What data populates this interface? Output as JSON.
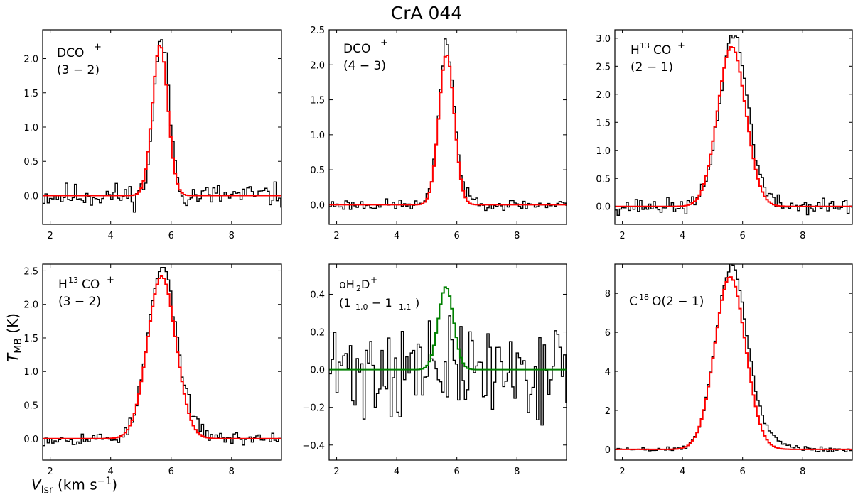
{
  "figure": {
    "title": "CrA 044",
    "ylabel_main": "T",
    "ylabel_sub": "MB",
    "ylabel_unit": " (K)",
    "xlabel_main": "V",
    "xlabel_sub": "lsr",
    "xlabel_unit": " (km s",
    "xlabel_exp": "−1",
    "xlabel_close": ")"
  },
  "chart_data": [
    {
      "type": "line",
      "label": [
        "DCO",
        "+",
        "(3 − 2)"
      ],
      "xlim": [
        1.75,
        9.65
      ],
      "ylim": [
        -0.42,
        2.42
      ],
      "xticks": [
        2,
        4,
        6,
        8
      ],
      "xtick_labels": [
        "2",
        "4",
        "6",
        "8"
      ],
      "yticks": [
        0.0,
        0.5,
        1.0,
        1.5,
        2.0
      ],
      "ytick_labels": [
        "0.0",
        "0.5",
        "1.0",
        "1.5",
        "2.0"
      ],
      "fit_color": "#ff0000",
      "fit": {
        "amp": 2.2,
        "center": 5.6,
        "fwhm": 0.6
      },
      "obs_color": "#000000",
      "obs": {
        "noise": 0.09,
        "seed": 11,
        "ratio": 1.03,
        "shift": 0.05,
        "wing_amp": 0,
        "wing_width": 0,
        "spike_x": 5.6,
        "spike_y": 2.25
      }
    },
    {
      "type": "line",
      "label": [
        "DCO",
        "+",
        "(4 − 3)"
      ],
      "xlim": [
        1.75,
        9.65
      ],
      "ylim": [
        -0.28,
        2.5
      ],
      "xticks": [
        2,
        4,
        6,
        8
      ],
      "xtick_labels": [
        "2",
        "4",
        "6",
        "8"
      ],
      "yticks": [
        0.0,
        0.5,
        1.0,
        1.5,
        2.0,
        2.5
      ],
      "ytick_labels": [
        "0.0",
        "0.5",
        "1.0",
        "1.5",
        "2.0",
        "2.5"
      ],
      "fit_color": "#ff0000",
      "fit": {
        "amp": 2.15,
        "center": 5.62,
        "fwhm": 0.6
      },
      "obs_color": "#000000",
      "obs": {
        "noise": 0.04,
        "seed": 23,
        "ratio": 1.05,
        "shift": 0.0,
        "wing_amp": 0.08,
        "wing_width": 0.9,
        "spike_x": 5.6,
        "spike_y": 2.37
      }
    },
    {
      "type": "line",
      "label": [
        "H",
        "13",
        "CO",
        "+",
        "(2 − 1)"
      ],
      "xlim": [
        1.75,
        9.65
      ],
      "ylim": [
        -0.32,
        3.15
      ],
      "xticks": [
        2,
        4,
        6,
        8
      ],
      "xtick_labels": [
        "2",
        "4",
        "6",
        "8"
      ],
      "yticks": [
        0.0,
        0.5,
        1.0,
        1.5,
        2.0,
        2.5,
        3.0
      ],
      "ytick_labels": [
        "0.0",
        "0.5",
        "1.0",
        "1.5",
        "2.0",
        "2.5",
        "3.0"
      ],
      "fit_color": "#ff0000",
      "fit": {
        "amp": 2.85,
        "center": 5.6,
        "fwhm": 1.1
      },
      "obs_color": "#000000",
      "obs": {
        "noise": 0.07,
        "seed": 37,
        "ratio": 1.05,
        "shift": 0.05,
        "wing_amp": 0.12,
        "wing_width": 1.3,
        "spike_x": 5.6,
        "spike_y": 3.05
      }
    },
    {
      "type": "line",
      "label": [
        "H",
        "13",
        "CO",
        "+",
        "(3 − 2)"
      ],
      "xlim": [
        1.75,
        9.65
      ],
      "ylim": [
        -0.32,
        2.6
      ],
      "xticks": [
        2,
        4,
        6,
        8
      ],
      "xtick_labels": [
        "2",
        "4",
        "6",
        "8"
      ],
      "yticks": [
        0.0,
        0.5,
        1.0,
        1.5,
        2.0,
        2.5
      ],
      "ytick_labels": [
        "0.0",
        "0.5",
        "1.0",
        "1.5",
        "2.0",
        "2.5"
      ],
      "fit_color": "#ff0000",
      "fit": {
        "amp": 2.42,
        "center": 5.65,
        "fwhm": 1.1
      },
      "obs_color": "#000000",
      "obs": {
        "noise": 0.05,
        "seed": 53,
        "ratio": 1.03,
        "shift": 0.0,
        "wing_amp": 0.15,
        "wing_width": 1.4,
        "spike_x": 5.65,
        "spike_y": 2.55
      }
    },
    {
      "type": "line",
      "label": [
        "oH",
        "2",
        "D",
        "+",
        "(1",
        "1,0",
        " − 1",
        "1,1",
        ")"
      ],
      "xlim": [
        1.75,
        9.65
      ],
      "ylim": [
        -0.48,
        0.56
      ],
      "xticks": [
        2,
        4,
        6,
        8
      ],
      "xtick_labels": [
        "2",
        "4",
        "6",
        "8"
      ],
      "yticks": [
        -0.4,
        -0.2,
        0.0,
        0.2,
        0.4
      ],
      "ytick_labels": [
        "−0.4",
        "−0.2",
        "0.0",
        "0.2",
        "0.4"
      ],
      "fit_color": "#008000",
      "fit": {
        "amp": 0.44,
        "center": 5.6,
        "fwhm": 0.6
      },
      "obs_color": "#000000",
      "obs": {
        "noise": 0.13,
        "seed": 71,
        "ratio": 0.0,
        "shift": 0.0,
        "wing_amp": 0,
        "wing_width": 0,
        "spike_x": 0,
        "spike_y": 0
      }
    },
    {
      "type": "line",
      "label": [
        "C",
        "18",
        "O(2 − 1)"
      ],
      "xlim": [
        1.75,
        9.65
      ],
      "ylim": [
        -0.55,
        9.5
      ],
      "xticks": [
        2,
        4,
        6,
        8
      ],
      "xtick_labels": [
        "2",
        "4",
        "6",
        "8"
      ],
      "yticks": [
        0,
        2,
        4,
        6,
        8
      ],
      "ytick_labels": [
        "0",
        "2",
        "4",
        "6",
        "8"
      ],
      "fit_color": "#ff0000",
      "fit": {
        "amp": 8.85,
        "center": 5.55,
        "fwhm": 1.2
      },
      "obs_color": "#000000",
      "obs": {
        "noise": 0.07,
        "seed": 89,
        "ratio": 1.02,
        "shift": 0.0,
        "wing_amp": 0.9,
        "wing_width": 1.6,
        "spike_x": 5.5,
        "spike_y": 9.1
      }
    }
  ]
}
